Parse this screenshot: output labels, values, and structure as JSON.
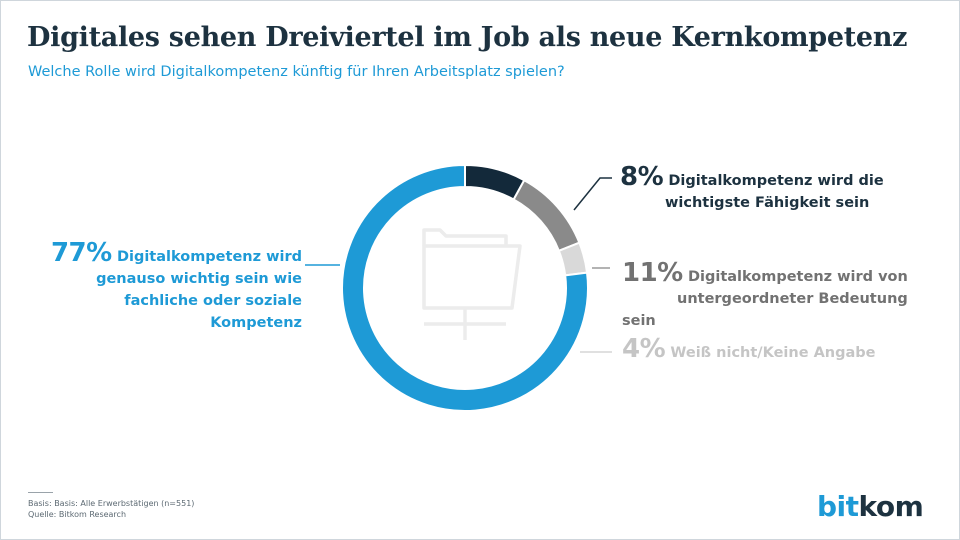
{
  "title": "Digitales sehen Dreiviertel im Job als neue Kernkompetenz",
  "subtitle": "Welche Rolle wird Digitalkompetenz künftig für Ihren Arbeitsplatz spielen?",
  "chart_data": {
    "type": "pie",
    "variant": "donut",
    "categories": [
      "Digitalkompetenz wird genauso wichtig sein wie fachliche oder soziale Kompetenz",
      "Digitalkompetenz wird die wichtigste Fähigkeit sein",
      "Digitalkompetenz wird von untergeordneter Bedeutung sein",
      "Weiß nicht/Keine Angabe"
    ],
    "values": [
      77,
      8,
      11,
      4
    ],
    "colors": [
      "#1e9ad6",
      "#13293a",
      "#8a8a8a",
      "#d9d9d9"
    ],
    "center_icon": "folder-icon"
  },
  "labels": {
    "left_pct": "77%",
    "left_text": "Digitalkompetenz wird genauso wichtig sein wie fachliche oder soziale Kompetenz",
    "s1_pct": "8%",
    "s1_text_1": "Digitalkompetenz wird die",
    "s1_text_2": "wichtigste Fähigkeit sein",
    "s2_pct": "11%",
    "s2_text_1": "Digitalkompetenz wird von",
    "s2_text_2": "untergeordneter Bedeutung sein",
    "s3_pct": "4%",
    "s3_text": "Weiß nicht/Keine Angabe"
  },
  "footer": {
    "basis": "Basis: Basis: Alle Erwerbstätigen (n=551)",
    "source": "Quelle: Bitkom Research"
  },
  "logo": {
    "part1": "bit",
    "part2": "kom"
  }
}
